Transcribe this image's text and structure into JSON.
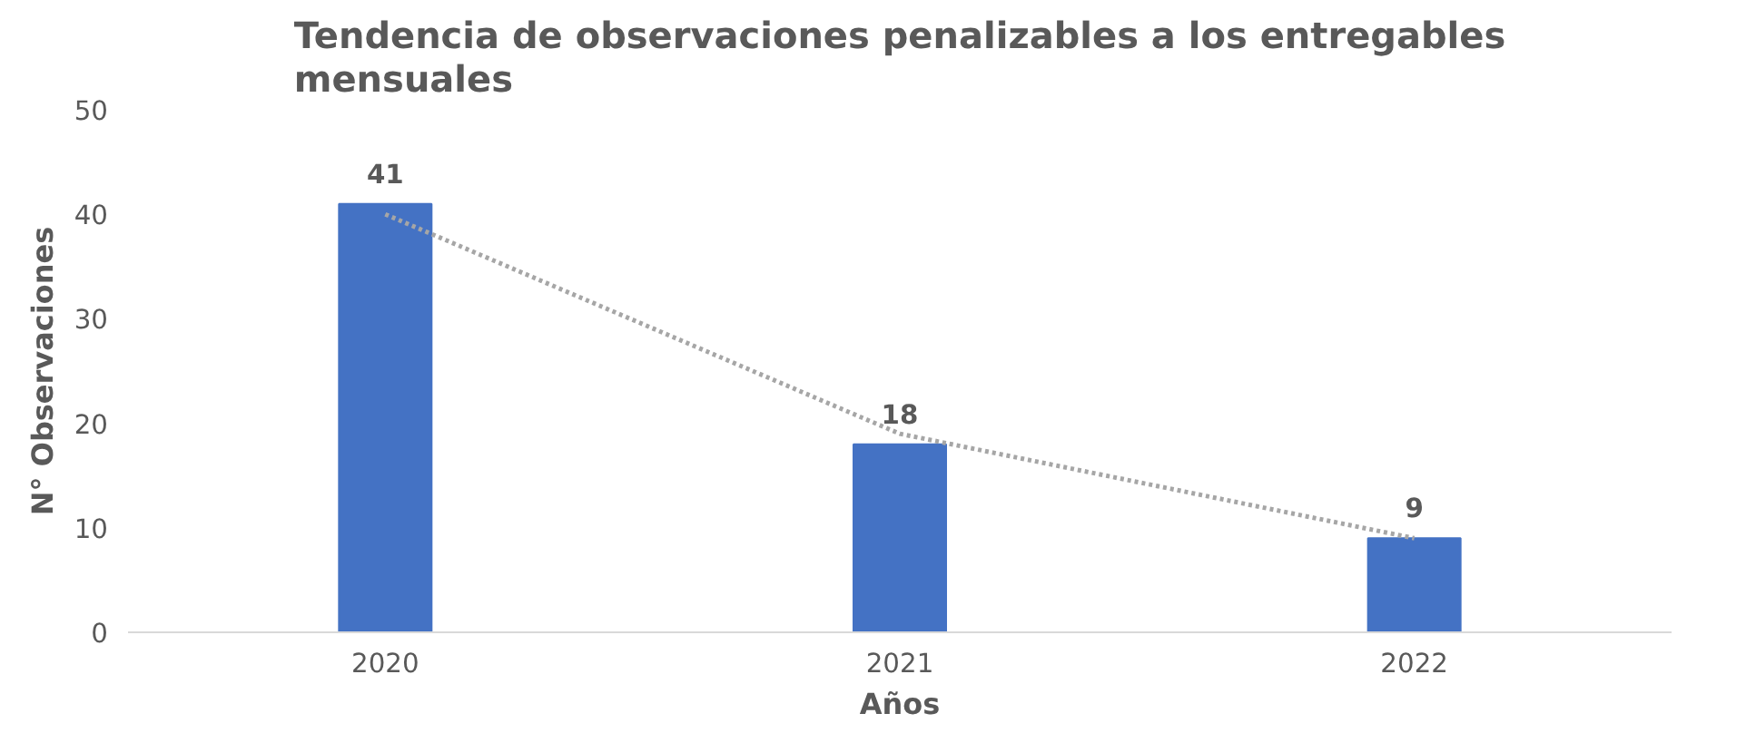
{
  "chart_data": {
    "type": "bar",
    "title": "Tendencia de observaciones penalizables a los entregables mensuales",
    "xlabel": "Años",
    "ylabel": "N° Observaciones",
    "categories": [
      "2020",
      "2021",
      "2022"
    ],
    "series": [
      {
        "color": "#4472c4",
        "values": [
          41,
          18,
          9
        ],
        "value_labels": [
          "41",
          "18",
          "9"
        ]
      },
      {
        "type": "line",
        "color": "#a6a6a6",
        "line_style": "dotted",
        "values": [
          40,
          19,
          9
        ]
      }
    ],
    "ylim": [
      0,
      50
    ],
    "yticks": [
      0,
      10,
      20,
      30,
      40,
      50
    ],
    "grid": false
  }
}
